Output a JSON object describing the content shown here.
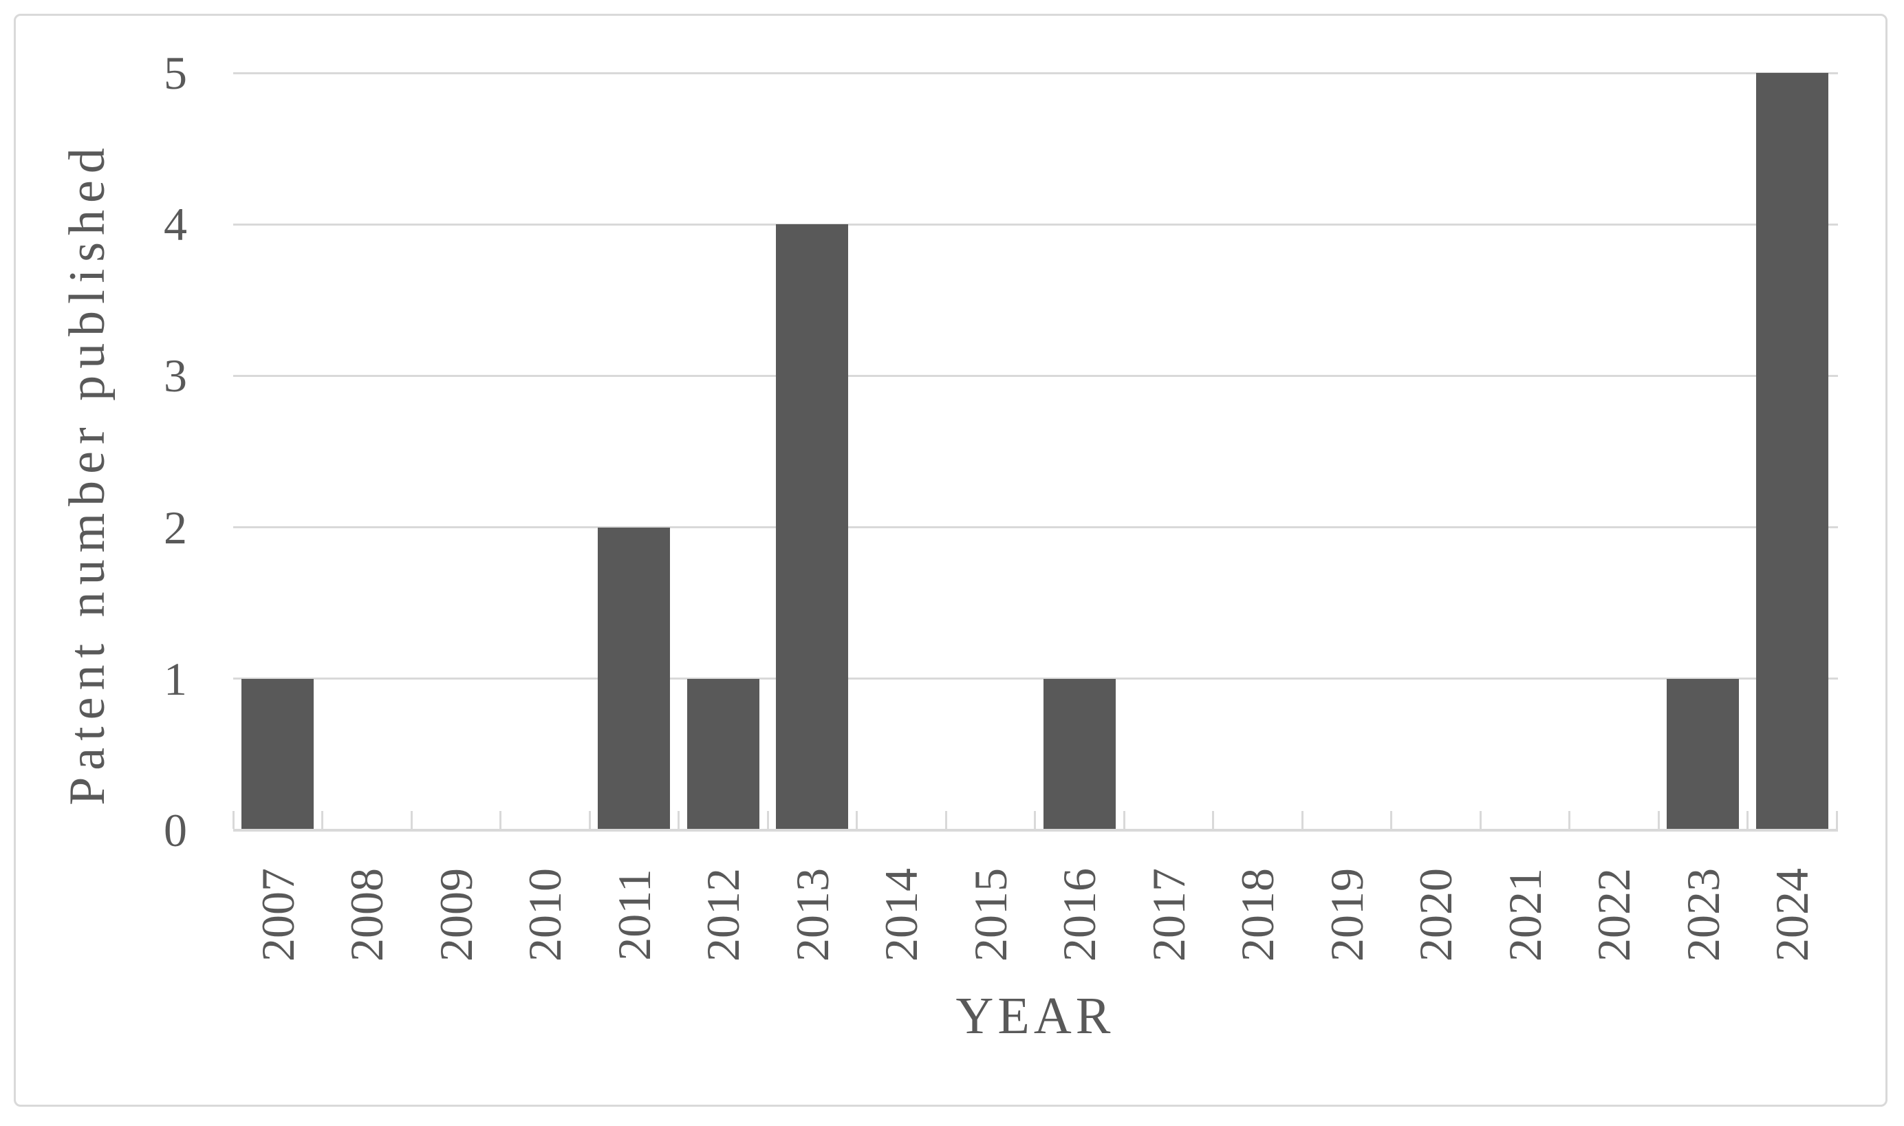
{
  "figure": {
    "background": "#FFFFFF",
    "border_color": "#D9D9D9"
  },
  "chart_data": {
    "type": "bar",
    "title": "",
    "xlabel": "YEAR",
    "ylabel": "Patent number published",
    "categories": [
      "2007",
      "2008",
      "2009",
      "2010",
      "2011",
      "2012",
      "2013",
      "2014",
      "2015",
      "2016",
      "2017",
      "2018",
      "2019",
      "2020",
      "2021",
      "2022",
      "2023",
      "2024"
    ],
    "values": [
      1,
      0,
      0,
      0,
      2,
      1,
      4,
      0,
      0,
      1,
      0,
      0,
      0,
      0,
      0,
      0,
      1,
      5
    ],
    "ylim": [
      0,
      5
    ],
    "yticks": [
      0,
      1,
      2,
      3,
      4,
      5
    ],
    "grid": "horizontal",
    "legend": "none",
    "colors": {
      "bar": "#595959",
      "gridline": "#D9D9D9",
      "axis_line": "#D9D9D9",
      "tick": "#D9D9D9",
      "text": "#595959"
    }
  }
}
